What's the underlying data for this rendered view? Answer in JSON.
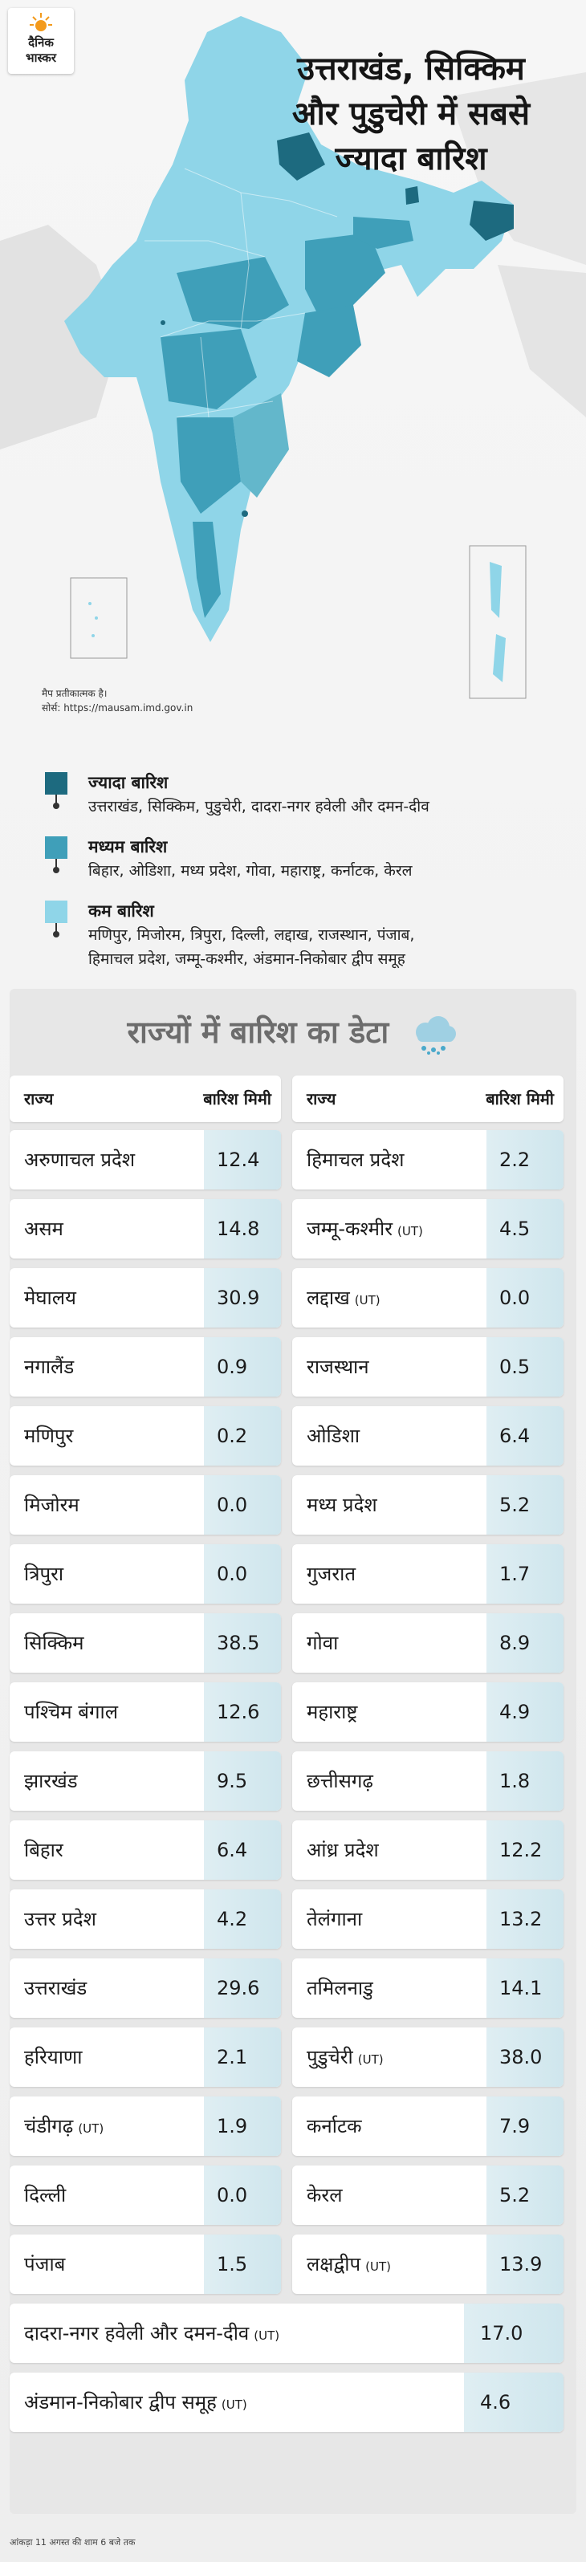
{
  "brand": {
    "line1": "दैनिक",
    "line2": "भास्कर"
  },
  "headline": {
    "line1": "उत्तराखंड, सिक्किम",
    "line2": "और पुडुचेरी में सबसे",
    "line3": "ज्यादा बारिश"
  },
  "map_note": {
    "disclaimer": "मैप प्रतीकात्मक है।",
    "source": "सोर्स: https://mausam.imd.gov.in"
  },
  "legend": [
    {
      "title": "ज्यादा बारिश",
      "states": "उत्तराखंड, सिक्किम, पुडुचेरी, दादरा-नगर हवेली और दमन-दीव",
      "color": "#1d6a7f"
    },
    {
      "title": "मध्यम बारिश",
      "states": "बिहार, ओडिशा, मध्य प्रदेश, गोवा, महाराष्ट्र, कर्नाटक, केरल",
      "color": "#3f9fb9"
    },
    {
      "title": "कम बारिश",
      "states": "मणिपुर, मिजोरम, त्रिपुरा, दिल्ली, लद्दाख, राजस्थान, पंजाब,",
      "states2": "हिमाचल प्रदेश, जम्मू-कश्मीर, अंडमान-निकोबार द्वीप समूह",
      "color": "#8fd5e8"
    }
  ],
  "table": {
    "title": "राज्यों में बारिश का डेटा",
    "header_state": "राज्य",
    "header_rain": "बारिश मिमी",
    "ut_tag": "(UT)",
    "left": [
      {
        "name": "अरुणाचल प्रदेश",
        "value": "12.4"
      },
      {
        "name": "असम",
        "value": "14.8"
      },
      {
        "name": "मेघालय",
        "value": "30.9"
      },
      {
        "name": "नगालैंड",
        "value": "0.9"
      },
      {
        "name": "मणिपुर",
        "value": "0.2"
      },
      {
        "name": "मिजोरम",
        "value": "0.0"
      },
      {
        "name": "त्रिपुरा",
        "value": "0.0"
      },
      {
        "name": "सिक्किम",
        "value": "38.5"
      },
      {
        "name": "पश्चिम बंगाल",
        "value": "12.6"
      },
      {
        "name": "झारखंड",
        "value": "9.5"
      },
      {
        "name": "बिहार",
        "value": "6.4"
      },
      {
        "name": "उत्तर प्रदेश",
        "value": "4.2"
      },
      {
        "name": "उत्तराखंड",
        "value": "29.6"
      },
      {
        "name": "हरियाणा",
        "value": "2.1"
      },
      {
        "name": "चंडीगढ़",
        "value": "1.9",
        "ut": true
      },
      {
        "name": "दिल्ली",
        "value": "0.0"
      },
      {
        "name": "पंजाब",
        "value": "1.5"
      }
    ],
    "right": [
      {
        "name": "हिमाचल प्रदेश",
        "value": "2.2"
      },
      {
        "name": "जम्मू-कश्मीर",
        "value": "4.5",
        "ut": true
      },
      {
        "name": "लद्दाख",
        "value": "0.0",
        "ut": true
      },
      {
        "name": "राजस्थान",
        "value": "0.5"
      },
      {
        "name": "ओडिशा",
        "value": "6.4"
      },
      {
        "name": "मध्य प्रदेश",
        "value": "5.2"
      },
      {
        "name": "गुजरात",
        "value": "1.7"
      },
      {
        "name": "गोवा",
        "value": "8.9"
      },
      {
        "name": "महाराष्ट्र",
        "value": "4.9"
      },
      {
        "name": "छत्तीसगढ़",
        "value": "1.8"
      },
      {
        "name": "आंध्र प्रदेश",
        "value": "12.2"
      },
      {
        "name": "तेलंगाना",
        "value": "13.2"
      },
      {
        "name": "तमिलनाडु",
        "value": "14.1"
      },
      {
        "name": "पुडुचेरी",
        "value": "38.0",
        "ut": true
      },
      {
        "name": "कर्नाटक",
        "value": "7.9"
      },
      {
        "name": "केरल",
        "value": "5.2"
      },
      {
        "name": "लक्षद्वीप",
        "value": "13.9",
        "ut": true
      }
    ],
    "wide": [
      {
        "name": "दादरा-नगर हवेली और दमन-दीव",
        "value": "17.0",
        "ut": true
      },
      {
        "name": "अंडमान-निकोबार द्वीप समूह",
        "value": "4.6",
        "ut": true
      }
    ]
  },
  "footer": "आंकड़ा 11 अगस्त की शाम 6 बजे तक",
  "colors": {
    "high": "#1d6a7f",
    "medium": "#3f9fb9",
    "low": "#8fd5e8",
    "value_bg": "#d8ebf1"
  }
}
